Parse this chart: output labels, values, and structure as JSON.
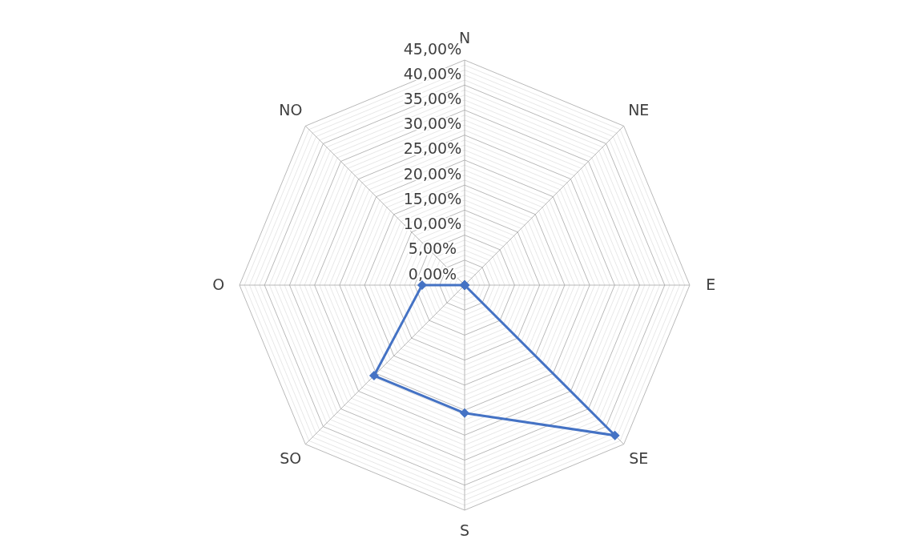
{
  "chart_data": {
    "type": "radar",
    "categories": [
      "N",
      "NE",
      "E",
      "SE",
      "S",
      "SO",
      "O",
      "NO"
    ],
    "series": [
      {
        "color": "#4472c4",
        "values": [
          0,
          0,
          0,
          42.5,
          25.6,
          25.6,
          8.5,
          0
        ]
      }
    ],
    "ylim": [
      0,
      45
    ],
    "yticks": [
      {
        "value": 0,
        "label": "0,00%"
      },
      {
        "value": 5,
        "label": "5,00%"
      },
      {
        "value": 10,
        "label": "10,00%"
      },
      {
        "value": 15,
        "label": "15,00%"
      },
      {
        "value": 20,
        "label": "20,00%"
      },
      {
        "value": 25,
        "label": "25,00%"
      },
      {
        "value": 30,
        "label": "30,00%"
      },
      {
        "value": 35,
        "label": "35,00%"
      },
      {
        "value": 40,
        "label": "40,00%"
      },
      {
        "value": 45,
        "label": "45,00%"
      }
    ],
    "grid": true,
    "marker": "diamond",
    "line_style": "solid"
  }
}
